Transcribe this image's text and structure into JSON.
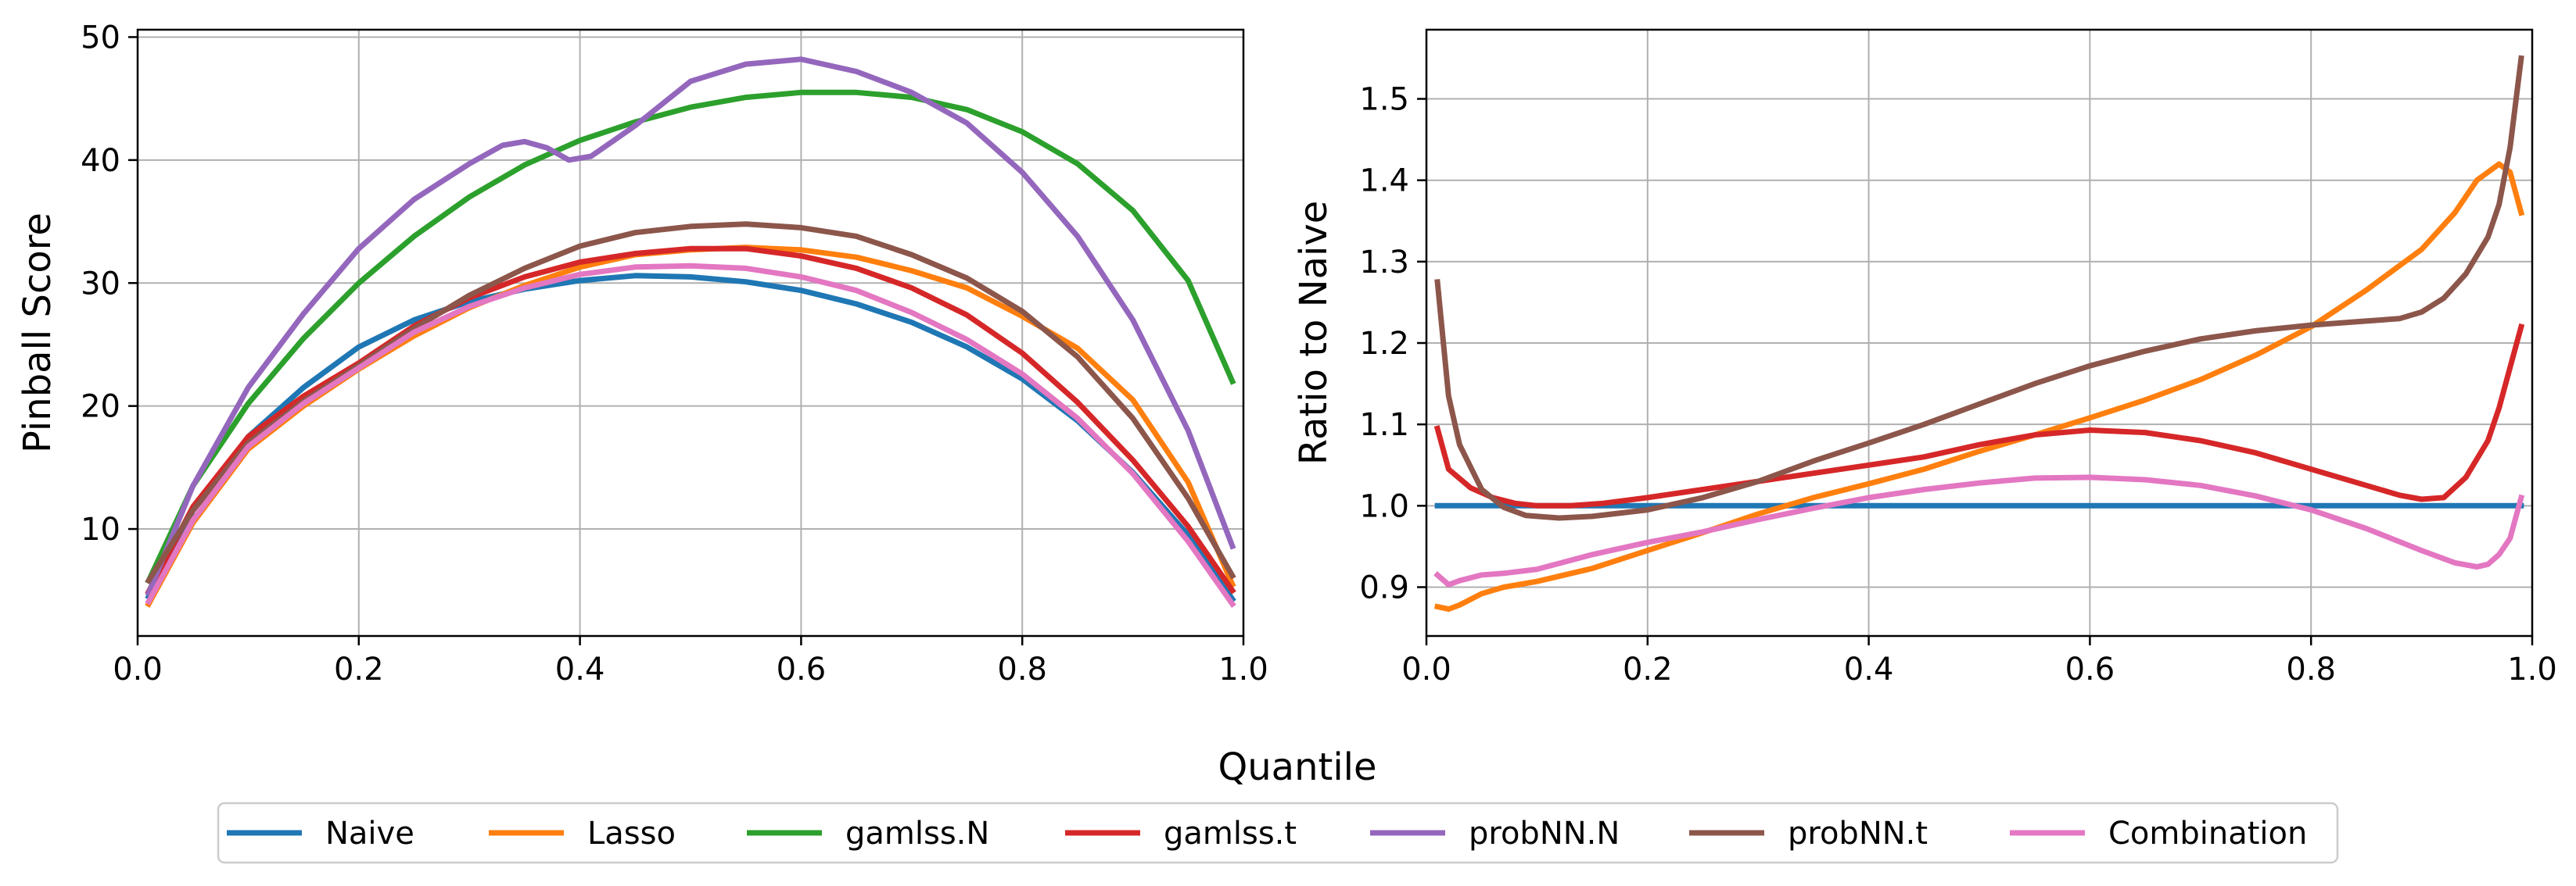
{
  "shared_xlabel": "Quantile",
  "legend": {
    "entries": [
      {
        "name": "Naive",
        "color": "#1f77b4"
      },
      {
        "name": "Lasso",
        "color": "#ff7f0e"
      },
      {
        "name": "gamlss.N",
        "color": "#2ca02c"
      },
      {
        "name": "gamlss.t",
        "color": "#d62728"
      },
      {
        "name": "probNN.N",
        "color": "#9467bd"
      },
      {
        "name": "probNN.t",
        "color": "#8c564b"
      },
      {
        "name": "Combination",
        "color": "#e377c2"
      }
    ],
    "placement": "bottom-center"
  },
  "chart_data": [
    {
      "type": "line",
      "title": "",
      "xlabel": "",
      "ylabel": "Pinball Score",
      "xlim": [
        0.0,
        1.0
      ],
      "ylim": [
        1.3,
        50.6
      ],
      "xticks": [
        0.0,
        0.2,
        0.4,
        0.6,
        0.8,
        1.0
      ],
      "xtick_labels": [
        "0.0",
        "0.2",
        "0.4",
        "0.6",
        "0.8",
        "1.0"
      ],
      "yticks": [
        10,
        20,
        30,
        40,
        50
      ],
      "ytick_labels": [
        "10",
        "20",
        "30",
        "40",
        "50"
      ],
      "grid": true,
      "series": [
        {
          "name": "Naive",
          "color": "#1f77b4",
          "x": [
            0.01,
            0.05,
            0.1,
            0.15,
            0.2,
            0.25,
            0.3,
            0.35,
            0.4,
            0.45,
            0.5,
            0.55,
            0.6,
            0.65,
            0.7,
            0.75,
            0.8,
            0.85,
            0.9,
            0.95,
            0.99
          ],
          "y": [
            4.5,
            11.5,
            17.5,
            21.5,
            24.8,
            27.0,
            28.5,
            29.5,
            30.2,
            30.6,
            30.5,
            30.1,
            29.4,
            28.3,
            26.8,
            24.8,
            22.2,
            18.8,
            14.6,
            9.5,
            4.3
          ]
        },
        {
          "name": "Lasso",
          "color": "#ff7f0e",
          "x": [
            0.01,
            0.05,
            0.1,
            0.15,
            0.2,
            0.25,
            0.3,
            0.35,
            0.4,
            0.45,
            0.5,
            0.55,
            0.6,
            0.65,
            0.7,
            0.75,
            0.8,
            0.85,
            0.9,
            0.95,
            0.99
          ],
          "y": [
            3.9,
            10.5,
            16.5,
            20.0,
            23.0,
            25.7,
            28.0,
            29.8,
            31.3,
            32.3,
            32.7,
            32.9,
            32.7,
            32.1,
            31.0,
            29.6,
            27.3,
            24.7,
            20.5,
            13.8,
            5.5
          ]
        },
        {
          "name": "gamlss.N",
          "color": "#2ca02c",
          "x": [
            0.01,
            0.05,
            0.1,
            0.15,
            0.2,
            0.25,
            0.3,
            0.35,
            0.4,
            0.45,
            0.5,
            0.55,
            0.6,
            0.65,
            0.7,
            0.75,
            0.8,
            0.85,
            0.9,
            0.95,
            0.99
          ],
          "y": [
            5.8,
            13.5,
            20.2,
            25.5,
            30.0,
            33.8,
            37.0,
            39.6,
            41.6,
            43.1,
            44.3,
            45.1,
            45.5,
            45.5,
            45.1,
            44.1,
            42.3,
            39.7,
            35.9,
            30.2,
            22.0
          ]
        },
        {
          "name": "gamlss.t",
          "color": "#d62728",
          "x": [
            0.01,
            0.05,
            0.1,
            0.15,
            0.2,
            0.25,
            0.3,
            0.35,
            0.4,
            0.45,
            0.5,
            0.55,
            0.6,
            0.65,
            0.7,
            0.75,
            0.8,
            0.85,
            0.9,
            0.95,
            0.99
          ],
          "y": [
            4.9,
            11.8,
            17.5,
            20.8,
            23.5,
            26.5,
            28.8,
            30.5,
            31.7,
            32.4,
            32.8,
            32.8,
            32.2,
            31.2,
            29.6,
            27.4,
            24.3,
            20.3,
            15.6,
            10.2,
            5.0
          ]
        },
        {
          "name": "probNN.N",
          "color": "#9467bd",
          "x": [
            0.01,
            0.05,
            0.1,
            0.15,
            0.2,
            0.25,
            0.3,
            0.33,
            0.35,
            0.37,
            0.39,
            0.41,
            0.45,
            0.5,
            0.55,
            0.6,
            0.65,
            0.7,
            0.75,
            0.8,
            0.85,
            0.9,
            0.95,
            0.99
          ],
          "y": [
            4.8,
            13.5,
            21.5,
            27.5,
            32.8,
            36.8,
            39.7,
            41.2,
            41.5,
            41.0,
            40.0,
            40.3,
            42.8,
            46.4,
            47.8,
            48.2,
            47.2,
            45.5,
            43.0,
            39.0,
            33.8,
            27.0,
            18.0,
            8.6
          ]
        },
        {
          "name": "probNN.t",
          "color": "#8c564b",
          "x": [
            0.01,
            0.05,
            0.1,
            0.15,
            0.2,
            0.25,
            0.3,
            0.35,
            0.4,
            0.45,
            0.5,
            0.55,
            0.6,
            0.65,
            0.7,
            0.75,
            0.8,
            0.85,
            0.9,
            0.95,
            0.99
          ],
          "y": [
            5.8,
            11.5,
            17.0,
            20.4,
            23.3,
            26.3,
            29.0,
            31.2,
            33.0,
            34.1,
            34.6,
            34.8,
            34.5,
            33.8,
            32.3,
            30.4,
            27.7,
            24.0,
            19.0,
            12.5,
            6.2
          ]
        },
        {
          "name": "Combination",
          "color": "#e377c2",
          "x": [
            0.01,
            0.05,
            0.1,
            0.15,
            0.2,
            0.25,
            0.3,
            0.35,
            0.4,
            0.45,
            0.5,
            0.55,
            0.6,
            0.65,
            0.7,
            0.75,
            0.8,
            0.85,
            0.9,
            0.95,
            0.99
          ],
          "y": [
            4.1,
            10.7,
            16.7,
            20.2,
            23.1,
            26.0,
            28.1,
            29.6,
            30.7,
            31.3,
            31.4,
            31.2,
            30.5,
            29.4,
            27.6,
            25.4,
            22.6,
            19.0,
            14.5,
            9.0,
            3.9
          ]
        }
      ]
    },
    {
      "type": "line",
      "title": "",
      "xlabel": "",
      "ylabel": "Ratio to Naive",
      "xlim": [
        0.0,
        1.0
      ],
      "ylim": [
        0.84,
        1.585
      ],
      "xticks": [
        0.0,
        0.2,
        0.4,
        0.6,
        0.8,
        1.0
      ],
      "xtick_labels": [
        "0.0",
        "0.2",
        "0.4",
        "0.6",
        "0.8",
        "1.0"
      ],
      "yticks": [
        0.9,
        1.0,
        1.1,
        1.2,
        1.3,
        1.4,
        1.5
      ],
      "ytick_labels": [
        "0.9",
        "1.0",
        "1.1",
        "1.2",
        "1.3",
        "1.4",
        "1.5"
      ],
      "grid": true,
      "series": [
        {
          "name": "Naive",
          "color": "#1f77b4",
          "x": [
            0.01,
            0.99
          ],
          "y": [
            1.0,
            1.0
          ]
        },
        {
          "name": "Lasso",
          "color": "#ff7f0e",
          "x": [
            0.01,
            0.02,
            0.03,
            0.05,
            0.07,
            0.1,
            0.15,
            0.2,
            0.25,
            0.3,
            0.35,
            0.4,
            0.45,
            0.5,
            0.55,
            0.6,
            0.65,
            0.7,
            0.75,
            0.8,
            0.85,
            0.9,
            0.93,
            0.95,
            0.97,
            0.98,
            0.99
          ],
          "y": [
            0.876,
            0.873,
            0.878,
            0.892,
            0.9,
            0.907,
            0.923,
            0.945,
            0.967,
            0.99,
            1.01,
            1.027,
            1.045,
            1.067,
            1.087,
            1.108,
            1.13,
            1.155,
            1.185,
            1.22,
            1.265,
            1.315,
            1.36,
            1.4,
            1.42,
            1.41,
            1.36
          ]
        },
        {
          "name": "gamlss.N",
          "color": "#2ca02c",
          "x": [],
          "y": []
        },
        {
          "name": "gamlss.t",
          "color": "#d62728",
          "x": [
            0.01,
            0.02,
            0.04,
            0.06,
            0.08,
            0.1,
            0.13,
            0.16,
            0.2,
            0.25,
            0.3,
            0.35,
            0.4,
            0.45,
            0.5,
            0.55,
            0.6,
            0.65,
            0.7,
            0.75,
            0.8,
            0.85,
            0.88,
            0.9,
            0.92,
            0.94,
            0.96,
            0.97,
            0.98,
            0.99
          ],
          "y": [
            1.095,
            1.045,
            1.022,
            1.01,
            1.003,
            1.0,
            1.0,
            1.003,
            1.01,
            1.02,
            1.03,
            1.04,
            1.05,
            1.06,
            1.075,
            1.087,
            1.093,
            1.09,
            1.08,
            1.065,
            1.045,
            1.025,
            1.013,
            1.008,
            1.01,
            1.035,
            1.08,
            1.12,
            1.17,
            1.22
          ]
        },
        {
          "name": "probNN.N",
          "color": "#9467bd",
          "x": [],
          "y": []
        },
        {
          "name": "probNN.t",
          "color": "#8c564b",
          "x": [
            0.01,
            0.02,
            0.03,
            0.05,
            0.07,
            0.09,
            0.12,
            0.15,
            0.2,
            0.25,
            0.3,
            0.35,
            0.4,
            0.45,
            0.5,
            0.55,
            0.6,
            0.65,
            0.7,
            0.75,
            0.8,
            0.85,
            0.88,
            0.9,
            0.92,
            0.94,
            0.96,
            0.97,
            0.98,
            0.99
          ],
          "y": [
            1.275,
            1.135,
            1.075,
            1.02,
            0.998,
            0.988,
            0.985,
            0.987,
            0.995,
            1.01,
            1.03,
            1.055,
            1.077,
            1.1,
            1.125,
            1.15,
            1.172,
            1.19,
            1.205,
            1.215,
            1.222,
            1.227,
            1.23,
            1.238,
            1.255,
            1.285,
            1.33,
            1.37,
            1.44,
            1.55
          ]
        },
        {
          "name": "Combination",
          "color": "#e377c2",
          "x": [
            0.01,
            0.02,
            0.03,
            0.05,
            0.07,
            0.1,
            0.15,
            0.2,
            0.25,
            0.3,
            0.35,
            0.4,
            0.45,
            0.5,
            0.55,
            0.6,
            0.65,
            0.7,
            0.75,
            0.8,
            0.85,
            0.9,
            0.93,
            0.95,
            0.96,
            0.97,
            0.98,
            0.99
          ],
          "y": [
            0.915,
            0.903,
            0.908,
            0.915,
            0.917,
            0.922,
            0.94,
            0.955,
            0.968,
            0.983,
            0.997,
            1.01,
            1.02,
            1.028,
            1.034,
            1.035,
            1.032,
            1.025,
            1.012,
            0.995,
            0.972,
            0.945,
            0.93,
            0.925,
            0.928,
            0.94,
            0.96,
            1.01
          ]
        }
      ]
    }
  ]
}
